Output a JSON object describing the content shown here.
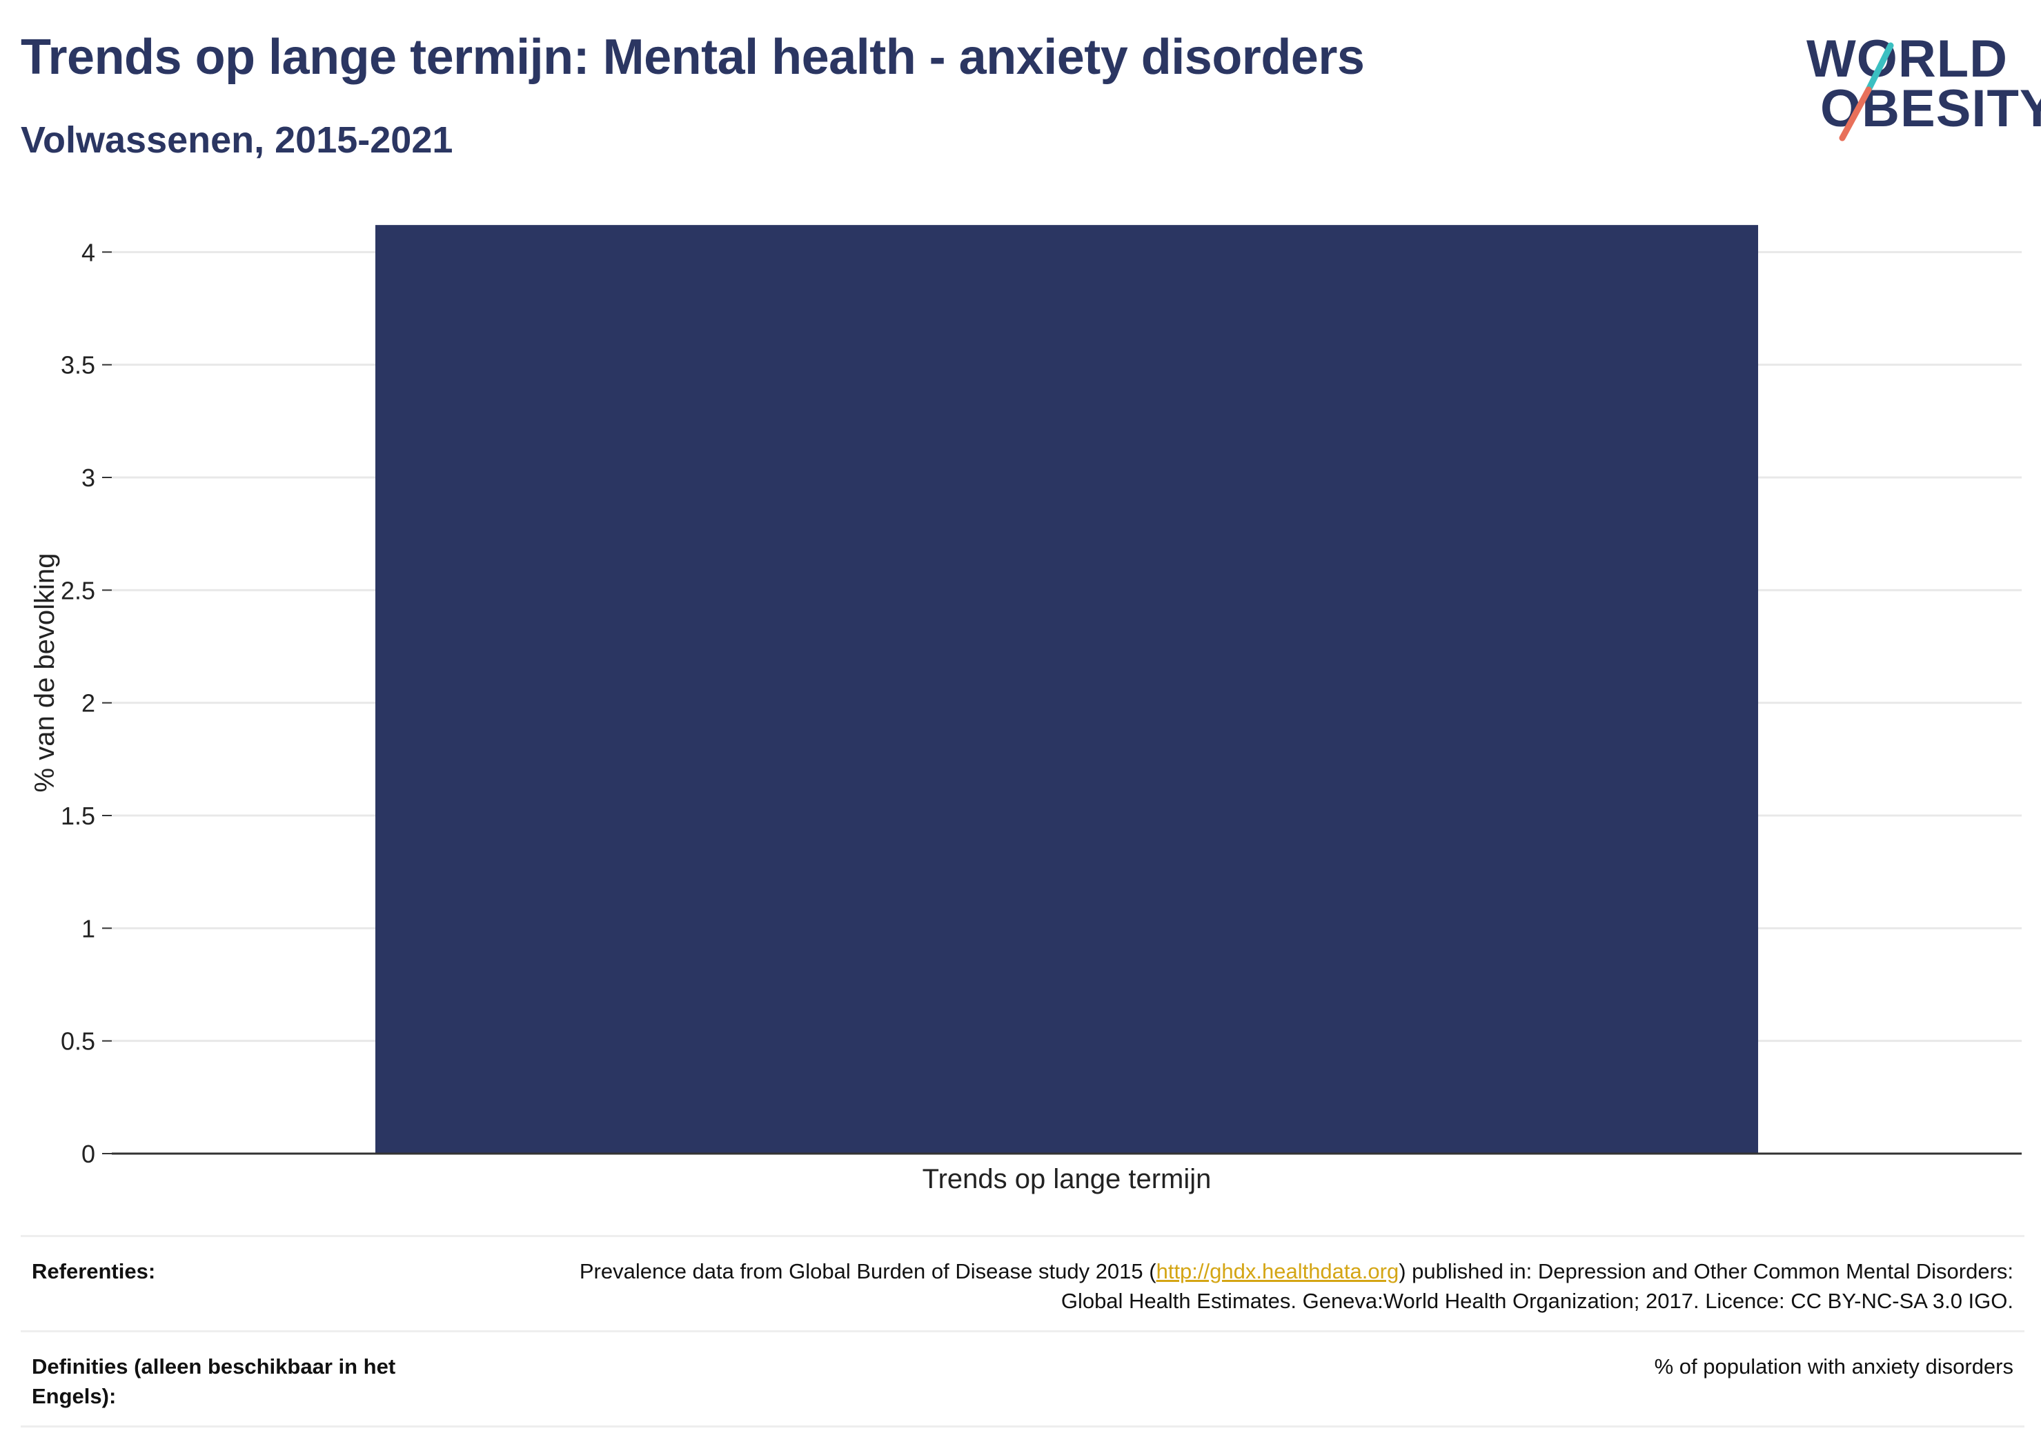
{
  "header": {
    "title": "Trends op lange termijn: Mental health - anxiety disorders",
    "subtitle": "Volwassenen, 2015-2021"
  },
  "logo": {
    "line1": "WORLD",
    "line2": "OBESITY",
    "color_text": "#2b3662",
    "color_slash_top": "#3bbfc1",
    "color_slash_bottom": "#e8705a"
  },
  "chart_data": {
    "type": "bar",
    "categories": [
      "Trends op lange termijn"
    ],
    "values": [
      4.12
    ],
    "xlabel": "",
    "ylabel": "% van de bevolking",
    "ylim": [
      0,
      4.2
    ],
    "yticks": [
      0,
      0.5,
      1,
      1.5,
      2,
      2.5,
      3,
      3.5,
      4
    ],
    "ytick_labels": [
      "0",
      "0.5",
      "1",
      "1.5",
      "2",
      "2.5",
      "3",
      "3.5",
      "4"
    ],
    "grid": true,
    "bar_color": "#2b3662",
    "gridline_color": "#e8e8e8",
    "axis_color": "#333333"
  },
  "footer": {
    "references_label": "Referenties:",
    "references_prefix": "Prevalence data from Global Burden of Disease study 2015 (",
    "references_link": "http://ghdx.healthdata.org",
    "references_suffix": ") published in: Depression and Other Common Mental Disorders: Global Health Estimates. Geneva:World Health Organization; 2017. Licence: CC BY-NC-SA 3.0 IGO.",
    "definitions_label": "Definities (alleen beschikbaar in het Engels):",
    "definitions_value": "% of population with anxiety disorders"
  }
}
